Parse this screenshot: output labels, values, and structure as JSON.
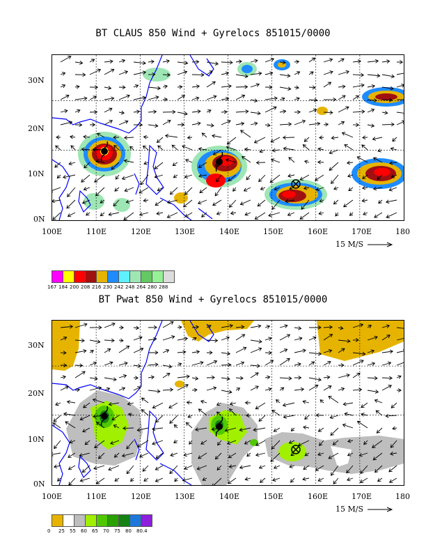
{
  "panel1": {
    "title": "BT CLAUS 850 Wind + Gyrelocs 851015/0000",
    "scale_label": "15 M/S",
    "colorbar": {
      "labels": [
        "167",
        "184",
        "200",
        "208",
        "216",
        "230",
        "242",
        "248",
        "264",
        "280",
        "288"
      ],
      "colors": [
        "#ff00ff",
        "#ffff00",
        "#ff0000",
        "#a01010",
        "#e6b400",
        "#1e8cff",
        "#5ef0ff",
        "#9ee6b4",
        "#64c864",
        "#96f096",
        "#dcdcdc"
      ]
    }
  },
  "panel2": {
    "title": "BT Pwat 850 Wind + Gyrelocs 851015/0000",
    "scale_label": "15 M/S",
    "colorbar": {
      "labels": [
        "0",
        "25",
        "55",
        "60",
        "65",
        "70",
        "75",
        "80",
        "80.4"
      ],
      "colors": [
        "#e6b400",
        "#ffffff",
        "#bebebe",
        "#a0f000",
        "#50c800",
        "#28a000",
        "#148214",
        "#1e78dc",
        "#8c1edc"
      ]
    }
  },
  "lon_labels": [
    "100E",
    "110E",
    "120E",
    "130E",
    "140E",
    "150E",
    "160E",
    "170E",
    "180"
  ],
  "lat_labels": [
    "0N",
    "10N",
    "20N",
    "30N"
  ],
  "colors": {
    "coast": "#0000ff",
    "grid": "#000000",
    "arrow": "#000000"
  },
  "legend_icons": [
    "typhoon-symbol-icon",
    "gyre-location-icon"
  ]
}
